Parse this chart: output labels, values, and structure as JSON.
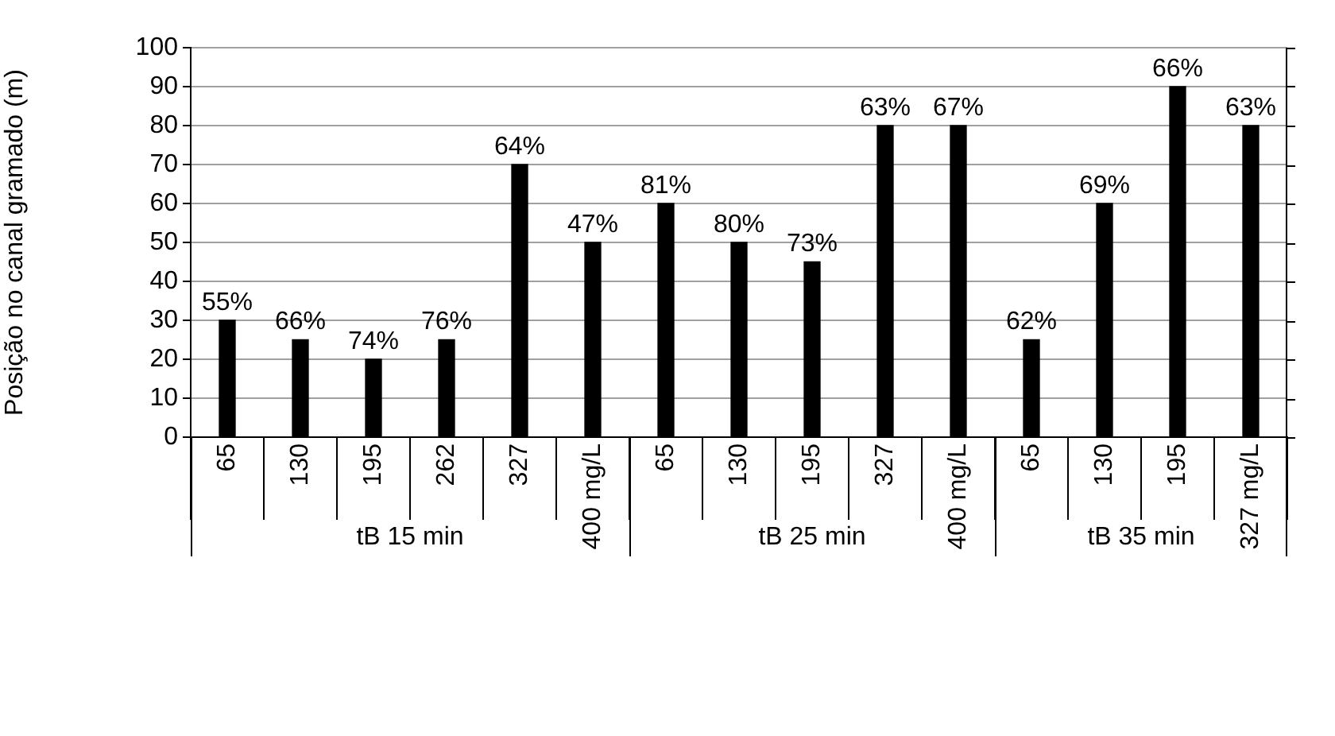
{
  "chart_data": [
    {
      "type": "bar",
      "ylabel": "Posição no canal gramado (m)",
      "xlabel": "tB 15 min",
      "categories": [
        "65",
        "130",
        "195",
        "262",
        "327",
        "400 mg/L"
      ],
      "values": [
        30,
        25,
        20,
        25,
        70,
        50
      ],
      "color": "#000000",
      "ylim": [
        0,
        100
      ],
      "yticks": [
        0,
        10,
        20,
        30,
        40,
        50,
        60,
        70,
        80,
        90,
        100
      ],
      "grid": "y",
      "annotations": [
        {
          "text": "55%",
          "x": "65",
          "y": 30
        },
        {
          "text": "66%",
          "x": "130",
          "y": 25
        },
        {
          "text": "74%",
          "x": "195",
          "y": 20
        },
        {
          "text": "76%",
          "x": "262",
          "y": 25
        },
        {
          "text": "64%",
          "x": "327",
          "y": 70
        },
        {
          "text": "47%",
          "x": "400 mg/L",
          "y": 50
        }
      ]
    },
    {
      "type": "bar",
      "xlabel": "tB 25 min",
      "categories": [
        "65",
        "130",
        "195",
        "327",
        "400 mg/L"
      ],
      "values": [
        60,
        50,
        45,
        80,
        80
      ],
      "color": "#000000",
      "ylim": [
        0,
        100
      ],
      "yticks": [
        0,
        10,
        20,
        30,
        40,
        50,
        60,
        70,
        80,
        90,
        100
      ],
      "grid": "y",
      "tick_labels": "x",
      "annotations": [
        {
          "text": "81%",
          "x": "65",
          "y": 60
        },
        {
          "text": "80%",
          "x": "130",
          "y": 50
        },
        {
          "text": "73%",
          "x": "195",
          "y": 45
        },
        {
          "text": "63%",
          "x": "327",
          "y": 80
        },
        {
          "text": "67%",
          "x": "400 mg/L",
          "y": 80
        }
      ]
    },
    {
      "type": "bar",
      "xlabel": "tB 35 min",
      "categories": [
        "65",
        "130",
        "195",
        "327 mg/L"
      ],
      "values": [
        25,
        60,
        90,
        80
      ],
      "color": "#000000",
      "ylim": [
        0,
        100
      ],
      "yticks": [
        0,
        10,
        20,
        30,
        40,
        50,
        60,
        70,
        80,
        90,
        100
      ],
      "grid": "y",
      "tick_labels": "x",
      "annotations": [
        {
          "text": "62%",
          "x": "65",
          "y": 25
        },
        {
          "text": "69%",
          "x": "130",
          "y": 60
        },
        {
          "text": "66%",
          "x": "195",
          "y": 90
        },
        {
          "text": "63%",
          "x": "327 mg/L",
          "y": 80
        }
      ]
    }
  ]
}
